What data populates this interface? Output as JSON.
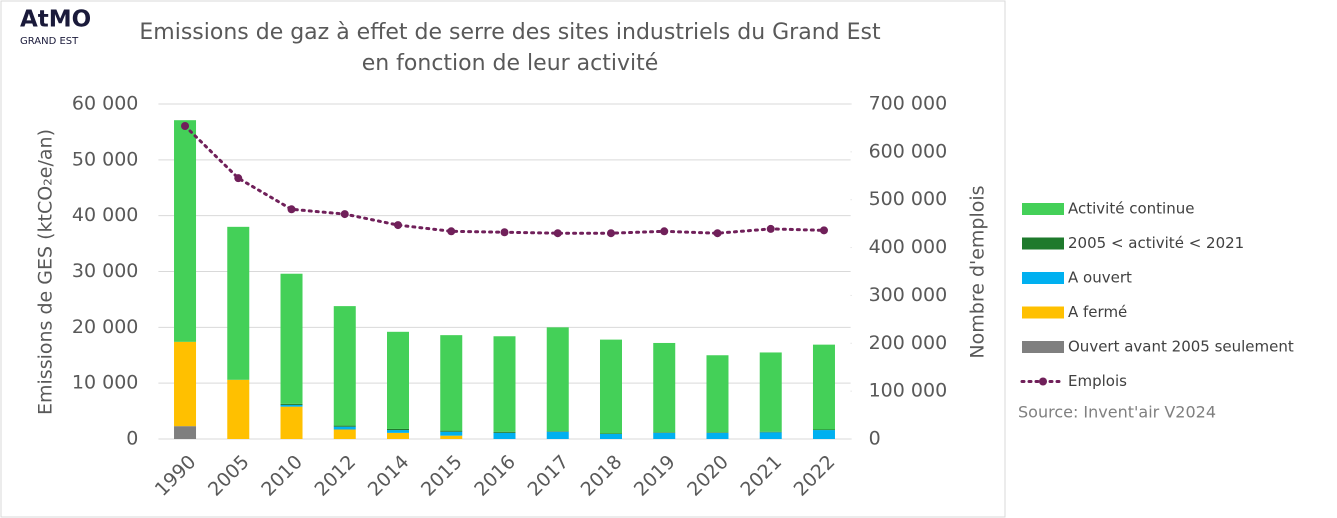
{
  "chart_data": {
    "type": "bar",
    "logo": {
      "name": "AtMO",
      "sub": "GRAND EST"
    },
    "title": [
      "Emissions de gaz à effet de serre des sites industriels du Grand Est",
      "en fonction de leur activité"
    ],
    "ylabel": "Emissions de GES (ktCO₂e/an)",
    "y2label": "Nombre d'emplois",
    "source": "Source: Invent'air V2024",
    "stacked": true,
    "grid": true,
    "legend": "right",
    "categories": [
      "1990",
      "2005",
      "2010",
      "2012",
      "2014",
      "2015",
      "2016",
      "2017",
      "2018",
      "2019",
      "2020",
      "2021",
      "2022"
    ],
    "series": [
      {
        "name": "Activité continue",
        "color": "#44d058",
        "values": [
          39700,
          27400,
          23300,
          21400,
          17400,
          17100,
          17100,
          18600,
          16800,
          16000,
          13800,
          14200,
          15200
        ]
      },
      {
        "name": "2005  < activité < 2021",
        "color": "#1e7a2c",
        "values": [
          0,
          0,
          200,
          200,
          200,
          200,
          200,
          100,
          100,
          100,
          100,
          100,
          100
        ]
      },
      {
        "name": "A ouvert",
        "color": "#00b0f0",
        "values": [
          0,
          0,
          300,
          500,
          500,
          700,
          1100,
          1300,
          900,
          1100,
          1100,
          1200,
          1600
        ]
      },
      {
        "name": "A fermé",
        "color": "#ffc000",
        "values": [
          15100,
          10600,
          5800,
          1700,
          1100,
          600,
          0,
          0,
          0,
          0,
          0,
          0,
          0
        ]
      },
      {
        "name": "Ouvert avant 2005 seulement",
        "color": "#7f7f7f",
        "values": [
          2300,
          0,
          0,
          0,
          0,
          0,
          0,
          0,
          0,
          0,
          0,
          0,
          0
        ]
      },
      {
        "name": "Emplois",
        "type": "line",
        "axis": "y2",
        "color": "#70205a",
        "dashed": true,
        "values": [
          654000,
          545000,
          480000,
          470000,
          447000,
          434000,
          432000,
          430000,
          430000,
          434000,
          430000,
          439000,
          436000
        ]
      }
    ],
    "ylim": [
      0,
      60000
    ],
    "yticks": [
      0,
      {
        "value": 10000,
        "label": "10 000"
      },
      {
        "value": 20000,
        "label": "20 000"
      },
      {
        "value": 30000,
        "label": "30 000"
      },
      {
        "value": 40000,
        "label": "40 000"
      },
      {
        "value": 50000,
        "label": "50 000"
      },
      {
        "value": 60000,
        "label": "60 000"
      }
    ],
    "y2lim": [
      0,
      700000
    ],
    "y2ticks": [
      0,
      {
        "value": 100000,
        "label": "100 000"
      },
      {
        "value": 200000,
        "label": "200 000"
      },
      {
        "value": 300000,
        "label": "300 000"
      },
      {
        "value": 400000,
        "label": "400 000"
      },
      {
        "value": 500000,
        "label": "500 000"
      },
      {
        "value": 600000,
        "label": "600 000"
      },
      {
        "value": 700000,
        "label": "700 000"
      }
    ]
  }
}
